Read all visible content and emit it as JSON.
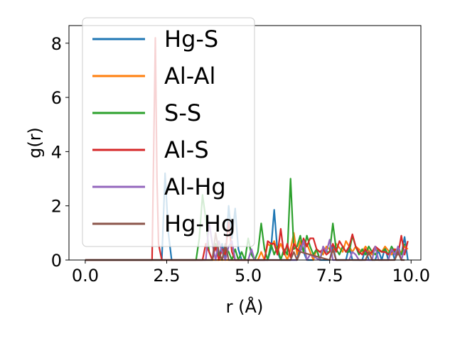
{
  "chart_data": {
    "type": "line",
    "xlabel": "r (Å)",
    "ylabel": "g(r)",
    "xlim": [
      -0.5,
      10.3
    ],
    "ylim": [
      0,
      8.65
    ],
    "xticks": [
      0.0,
      2.5,
      5.0,
      7.5,
      10.0
    ],
    "xtick_labels": [
      "0.0",
      "2.5",
      "5.0",
      "7.5",
      "10.0"
    ],
    "yticks": [
      0,
      2,
      4,
      6,
      8
    ],
    "ytick_labels": [
      "0",
      "2",
      "4",
      "6",
      "8"
    ],
    "grid": false,
    "legend_position": "top-left",
    "series": [
      {
        "name": "Hg-S",
        "color": "#1f77b4",
        "x": [
          0,
          2.35,
          2.45,
          2.55,
          2.65,
          2.75,
          4.1,
          4.2,
          4.3,
          4.4,
          4.5,
          4.6,
          4.7,
          4.8,
          5.6,
          5.7,
          5.8,
          5.9,
          6.0,
          6.1,
          6.5,
          6.6,
          6.7,
          6.8,
          7.0,
          7.1,
          7.2,
          7.5,
          7.6,
          7.7,
          8.0,
          8.1,
          8.2,
          8.5,
          8.6,
          8.7,
          8.9,
          9.0,
          9.1,
          9.2,
          9.3,
          9.4,
          9.5,
          9.6,
          9.7,
          9.8,
          9.9
        ],
        "y": [
          0,
          0,
          3.2,
          1.0,
          0,
          0,
          0,
          0.6,
          0,
          2.0,
          0.8,
          1.9,
          0.4,
          0,
          0,
          0.4,
          1.85,
          0.3,
          0,
          0,
          0,
          0.6,
          0.3,
          0,
          0,
          0.4,
          0,
          0,
          0.5,
          0,
          0,
          0.5,
          0,
          0,
          0.4,
          0,
          0,
          0.35,
          0,
          0.45,
          0,
          0.4,
          0,
          0.5,
          0.2,
          0.85,
          0
        ]
      },
      {
        "name": "Al-Al",
        "color": "#ff7f0e",
        "x": [
          0,
          5.3,
          5.4,
          5.5,
          5.6,
          5.7,
          5.8,
          5.9,
          6.0,
          6.2,
          6.3,
          6.4,
          6.5,
          6.6,
          6.7,
          6.8,
          7.0,
          7.1,
          7.3,
          7.4,
          7.6,
          7.7,
          7.9,
          8.0,
          8.2,
          8.3,
          8.5,
          8.6,
          8.8,
          8.9,
          9.1,
          9.2,
          9.4,
          9.5,
          9.7,
          9.8,
          9.9
        ],
        "y": [
          0,
          0,
          0.3,
          0,
          0.6,
          0.5,
          0.7,
          0.3,
          0.6,
          0,
          0.4,
          1.0,
          0.2,
          0.7,
          0.3,
          0.6,
          0,
          0.4,
          0.2,
          0.5,
          0.3,
          0.6,
          0.3,
          0.7,
          0.3,
          0.5,
          0.3,
          0.5,
          0.2,
          0.4,
          0.3,
          0.5,
          0.2,
          0.4,
          0.3,
          0.5,
          0.4
        ]
      },
      {
        "name": "S-S",
        "color": "#2ca02c",
        "x": [
          0,
          3.4,
          3.5,
          3.6,
          3.7,
          3.8,
          3.9,
          4.0,
          4.1,
          4.2,
          4.3,
          4.4,
          4.5,
          4.6,
          4.7,
          4.8,
          4.9,
          5.0,
          5.1,
          5.2,
          5.3,
          5.4,
          5.5,
          5.6,
          5.7,
          5.8,
          5.9,
          6.0,
          6.1,
          6.2,
          6.3,
          6.4,
          6.5,
          6.6,
          6.7,
          6.8,
          6.9,
          7.0,
          7.1,
          7.2,
          7.3,
          7.4,
          7.5,
          7.6,
          7.7,
          7.8,
          7.9,
          8.0,
          8.1,
          8.2,
          8.3,
          8.4,
          8.5,
          8.6,
          8.7,
          8.8,
          8.9,
          9.0,
          9.1,
          9.2,
          9.3,
          9.4,
          9.5,
          9.6,
          9.7,
          9.8
        ],
        "y": [
          0,
          0,
          0.8,
          2.4,
          1.5,
          0.3,
          0,
          0.6,
          0.2,
          0,
          0.5,
          0.3,
          0,
          0.4,
          0,
          0.3,
          0,
          0.8,
          0.2,
          0,
          0.3,
          1.35,
          0.4,
          0,
          0.6,
          0.2,
          0.5,
          0,
          0.4,
          0.2,
          3.0,
          0.4,
          0.5,
          0.9,
          0.3,
          0.9,
          0.5,
          0.2,
          0.4,
          0,
          0.4,
          0.3,
          0.3,
          1.35,
          0.4,
          0.2,
          0.5,
          0.3,
          0.3,
          0.9,
          0.5,
          0.2,
          0.4,
          0.2,
          0.5,
          0.3,
          0.2,
          0.4,
          0.3,
          0.4,
          0.2,
          0.5,
          0.3,
          0.4,
          0.2,
          0.6
        ]
      },
      {
        "name": "Al-S",
        "color": "#d62728",
        "x": [
          0,
          2.05,
          2.15,
          2.2,
          2.25,
          2.35,
          3.6,
          3.7,
          3.8,
          3.9,
          4.0,
          4.1,
          4.2,
          4.3,
          4.4,
          4.5,
          4.6,
          5.5,
          5.6,
          5.7,
          5.8,
          5.9,
          6.0,
          6.1,
          6.2,
          6.3,
          6.4,
          6.5,
          6.6,
          6.7,
          6.8,
          6.9,
          7.0,
          7.1,
          7.2,
          7.3,
          7.4,
          7.5,
          7.6,
          7.7,
          7.8,
          7.9,
          8.0,
          8.1,
          8.2,
          8.3,
          8.4,
          8.5,
          8.6,
          8.7,
          8.8,
          8.9,
          9.0,
          9.1,
          9.2,
          9.3,
          9.4,
          9.5,
          9.6,
          9.7,
          9.8,
          9.9
        ],
        "y": [
          0,
          0,
          8.2,
          3.0,
          0.6,
          0,
          0,
          0.6,
          0.3,
          0,
          0.5,
          0,
          0.4,
          0.2,
          1.4,
          0.3,
          0,
          0,
          0.7,
          0.6,
          0.6,
          0.2,
          1.15,
          0.2,
          0.6,
          0.1,
          0.6,
          0.4,
          0.3,
          0.8,
          0.5,
          0.8,
          0.8,
          0.4,
          0.3,
          0.4,
          0.2,
          0.3,
          0.6,
          0.3,
          0.7,
          0.5,
          0.3,
          0.5,
          0.95,
          0.5,
          0.3,
          0.2,
          0.4,
          0.2,
          0.3,
          0.5,
          0.4,
          0.3,
          0.3,
          0.2,
          0.3,
          0.4,
          0.2,
          0.9,
          0.2,
          0.7
        ]
      },
      {
        "name": "Al-Hg",
        "color": "#9467bd",
        "x": [
          0,
          3.7,
          3.8,
          3.9,
          4.0,
          4.1,
          4.2,
          4.3,
          4.4,
          4.5,
          4.6,
          5.0,
          5.1,
          5.2,
          5.3,
          6.5,
          6.6,
          6.7,
          6.8,
          6.9,
          7.2,
          7.3,
          7.4,
          7.5,
          7.6,
          8.1,
          8.2,
          8.3,
          8.4,
          8.8,
          8.9,
          9.0,
          9.3,
          9.4,
          9.5,
          9.6,
          9.7,
          9.8
        ],
        "y": [
          0,
          0,
          1.4,
          0.6,
          0,
          0.7,
          0.3,
          0,
          0.5,
          0.7,
          0,
          0,
          0.4,
          0,
          0,
          0,
          0.3,
          0.7,
          0,
          0.2,
          0,
          0.5,
          0.3,
          0.75,
          0,
          0,
          0.3,
          0.2,
          0,
          0,
          0.5,
          0,
          0,
          0.4,
          0.2,
          0.5,
          0,
          0.4
        ]
      },
      {
        "name": "Hg-Hg",
        "color": "#8c564b",
        "x": [
          0,
          3.9,
          4.0,
          4.1,
          4.2,
          4.3,
          4.4,
          6.3,
          6.4,
          6.5,
          6.6,
          7.5,
          7.6,
          7.7,
          8.6,
          8.7,
          8.8,
          9.5,
          9.6,
          9.7,
          9.8
        ],
        "y": [
          0,
          0,
          1.0,
          0.3,
          0,
          0.6,
          0,
          0,
          0.3,
          0,
          0.3,
          0,
          0.4,
          0,
          0,
          0.3,
          0,
          0,
          0.3,
          0,
          0
        ]
      }
    ]
  }
}
